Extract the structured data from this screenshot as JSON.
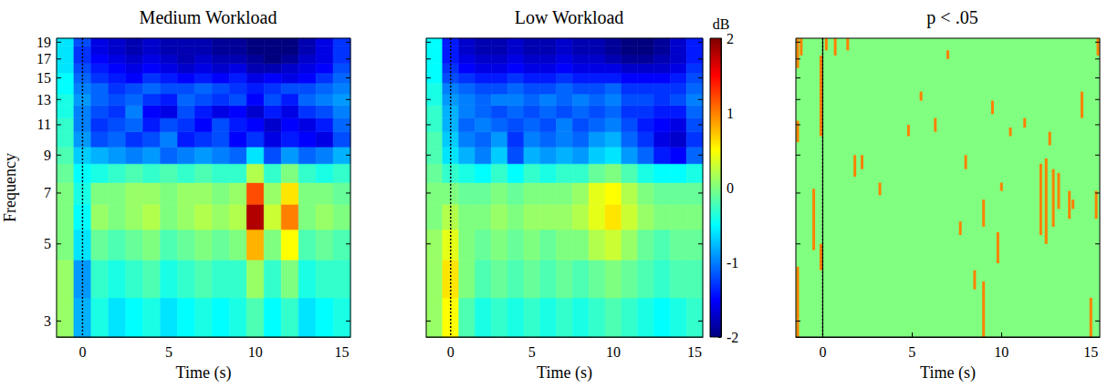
{
  "chart_data": [
    {
      "type": "heatmap",
      "title": "Medium Workload",
      "xlabel": "Time (s)",
      "ylabel": "Frequency",
      "xlim": [
        -1.5,
        15.5
      ],
      "xticks": [
        0,
        5,
        10,
        15
      ],
      "ylim": [
        2.7,
        19.5
      ],
      "yticks": [
        3,
        5,
        7,
        9,
        11,
        13,
        15,
        17,
        19
      ],
      "log": "y",
      "event_line": 0,
      "times": [
        -1,
        0,
        1,
        2,
        3,
        4,
        5,
        6,
        7,
        8,
        9,
        10,
        11,
        12,
        13,
        14,
        15
      ],
      "frequencies": [
        3,
        4,
        5,
        6,
        7,
        8,
        9,
        10,
        11,
        12,
        13,
        14,
        15,
        16,
        17,
        18,
        19
      ],
      "cells": [
        [
          0.1,
          -0.8,
          -0.4,
          -0.6,
          -0.5,
          -0.4,
          -0.6,
          -0.5,
          -0.4,
          -0.5,
          -0.4,
          -0.2,
          -0.5,
          -0.3,
          -0.6,
          -0.5,
          -0.4
        ],
        [
          0.1,
          -0.9,
          -0.3,
          -0.4,
          -0.3,
          -0.2,
          -0.4,
          -0.3,
          -0.2,
          -0.3,
          -0.3,
          0.1,
          -0.3,
          0.0,
          -0.4,
          -0.3,
          -0.3
        ],
        [
          0.0,
          -0.6,
          -0.1,
          -0.2,
          -0.1,
          0.0,
          -0.2,
          -0.1,
          0.0,
          -0.1,
          0.0,
          0.8,
          0.0,
          0.5,
          -0.2,
          -0.1,
          -0.2
        ],
        [
          0.0,
          -0.5,
          0.1,
          0.0,
          0.1,
          0.2,
          0.0,
          0.1,
          0.2,
          0.1,
          0.2,
          1.8,
          0.3,
          1.0,
          0.0,
          0.1,
          0.0
        ],
        [
          0.0,
          -0.4,
          0.0,
          0.0,
          0.1,
          0.1,
          0.0,
          0.1,
          0.1,
          0.0,
          0.1,
          1.2,
          0.1,
          0.6,
          0.0,
          0.0,
          -0.1
        ],
        [
          -0.1,
          -0.5,
          -0.4,
          -0.3,
          -0.2,
          -0.3,
          -0.2,
          -0.3,
          -0.2,
          -0.3,
          -0.3,
          0.2,
          -0.3,
          0.0,
          -0.3,
          -0.4,
          -0.3
        ],
        [
          -0.2,
          -0.7,
          -0.8,
          -0.9,
          -1.0,
          -0.9,
          -1.1,
          -1.0,
          -0.9,
          -1.0,
          -1.1,
          -0.6,
          -1.2,
          -0.9,
          -1.1,
          -1.0,
          -0.8
        ],
        [
          -0.3,
          -0.9,
          -1.2,
          -1.1,
          -1.3,
          -1.2,
          -1.0,
          -1.4,
          -1.3,
          -1.2,
          -1.5,
          -1.3,
          -1.6,
          -1.4,
          -1.5,
          -1.6,
          -1.2
        ],
        [
          -0.3,
          -1.0,
          -1.3,
          -1.2,
          -1.1,
          -1.4,
          -1.2,
          -1.3,
          -1.5,
          -1.2,
          -1.4,
          -1.5,
          -1.7,
          -1.5,
          -1.6,
          -1.4,
          -1.1
        ],
        [
          -0.4,
          -1.0,
          -1.2,
          -1.3,
          -1.0,
          -1.5,
          -1.6,
          -1.2,
          -1.4,
          -1.6,
          -1.5,
          -1.7,
          -1.4,
          -1.6,
          -1.3,
          -1.2,
          -1.0
        ],
        [
          -0.4,
          -0.9,
          -1.1,
          -1.2,
          -1.1,
          -1.3,
          -1.4,
          -1.1,
          -1.2,
          -1.3,
          -1.2,
          -1.5,
          -1.2,
          -1.4,
          -1.1,
          -1.0,
          -0.9
        ],
        [
          -0.5,
          -1.0,
          -1.1,
          -1.3,
          -1.2,
          -1.1,
          -1.2,
          -1.2,
          -1.1,
          -1.2,
          -1.3,
          -1.4,
          -1.3,
          -1.2,
          -1.2,
          -1.1,
          -1.0
        ],
        [
          -0.5,
          -1.1,
          -1.3,
          -1.4,
          -1.5,
          -1.3,
          -1.4,
          -1.5,
          -1.4,
          -1.5,
          -1.4,
          -1.6,
          -1.5,
          -1.6,
          -1.5,
          -1.3,
          -1.1
        ],
        [
          -0.6,
          -1.2,
          -1.4,
          -1.5,
          -1.6,
          -1.5,
          -1.6,
          -1.7,
          -1.6,
          -1.7,
          -1.6,
          -1.8,
          -1.8,
          -1.7,
          -1.6,
          -1.5,
          -1.2
        ],
        [
          -0.6,
          -1.3,
          -1.5,
          -1.6,
          -1.7,
          -1.6,
          -1.7,
          -1.8,
          -1.7,
          -1.8,
          -1.8,
          -1.9,
          -2.0,
          -1.9,
          -1.7,
          -1.6,
          -1.3
        ],
        [
          -0.6,
          -1.3,
          -1.6,
          -1.7,
          -1.8,
          -1.7,
          -1.8,
          -1.8,
          -1.8,
          -1.9,
          -1.9,
          -2.0,
          -2.0,
          -2.0,
          -1.8,
          -1.6,
          -1.3
        ],
        [
          -0.6,
          -1.2,
          -1.6,
          -1.7,
          -1.8,
          -1.7,
          -1.8,
          -1.8,
          -1.8,
          -1.9,
          -1.9,
          -2.0,
          -2.0,
          -2.0,
          -1.8,
          -1.6,
          -1.3
        ]
      ]
    },
    {
      "type": "heatmap",
      "title": "Low Workload",
      "xlabel": "Time (s)",
      "xlim": [
        -1.5,
        15.5
      ],
      "xticks": [
        0,
        5,
        10,
        15
      ],
      "ylim": [
        2.7,
        19.5
      ],
      "yticks": [
        3,
        5,
        7,
        9,
        11,
        13,
        15,
        17,
        19
      ],
      "log": "y",
      "tick_labels": "x",
      "event_line": 0,
      "times": [
        -1,
        0,
        1,
        2,
        3,
        4,
        5,
        6,
        7,
        8,
        9,
        10,
        11,
        12,
        13,
        14,
        15
      ],
      "frequencies": [
        3,
        4,
        5,
        6,
        7,
        8,
        9,
        10,
        11,
        12,
        13,
        14,
        15,
        16,
        17,
        18,
        19
      ],
      "cells": [
        [
          0.1,
          0.5,
          -0.2,
          -0.4,
          -0.3,
          -0.4,
          -0.3,
          -0.4,
          -0.3,
          -0.4,
          -0.3,
          -0.2,
          -0.3,
          -0.4,
          -0.5,
          -0.4,
          -0.3
        ],
        [
          0.1,
          0.6,
          0.0,
          -0.2,
          -0.1,
          -0.2,
          -0.1,
          -0.2,
          -0.1,
          -0.2,
          -0.1,
          0.0,
          -0.1,
          -0.2,
          -0.3,
          -0.2,
          -0.2
        ],
        [
          0.1,
          0.4,
          0.0,
          -0.1,
          0.0,
          -0.1,
          0.0,
          -0.1,
          0.0,
          0.0,
          0.2,
          0.3,
          0.1,
          -0.1,
          -0.2,
          -0.1,
          -0.1
        ],
        [
          0.0,
          0.2,
          0.0,
          0.0,
          0.1,
          0.0,
          0.1,
          0.1,
          0.1,
          0.2,
          0.4,
          0.6,
          0.3,
          0.1,
          0.0,
          0.0,
          0.0
        ],
        [
          0.0,
          0.0,
          -0.1,
          -0.1,
          0.0,
          -0.1,
          0.0,
          0.0,
          0.0,
          0.1,
          0.4,
          0.5,
          0.2,
          0.0,
          -0.1,
          -0.1,
          -0.1
        ],
        [
          -0.1,
          -0.3,
          -0.4,
          -0.5,
          -0.3,
          -0.5,
          -0.3,
          -0.4,
          -0.3,
          -0.3,
          -0.1,
          0.0,
          -0.2,
          -0.4,
          -0.5,
          -0.5,
          -0.4
        ],
        [
          -0.2,
          -0.6,
          -0.8,
          -1.0,
          -0.7,
          -1.2,
          -0.8,
          -0.9,
          -0.8,
          -0.9,
          -0.7,
          -0.6,
          -0.9,
          -1.1,
          -1.4,
          -1.5,
          -1.1
        ],
        [
          -0.2,
          -0.7,
          -1.0,
          -1.1,
          -0.9,
          -1.3,
          -1.0,
          -1.1,
          -1.0,
          -1.1,
          -0.9,
          -0.8,
          -1.1,
          -1.3,
          -1.6,
          -1.7,
          -1.3
        ],
        [
          -0.3,
          -0.8,
          -1.1,
          -1.0,
          -1.1,
          -1.2,
          -1.1,
          -1.2,
          -1.0,
          -1.2,
          -1.1,
          -1.0,
          -1.2,
          -1.4,
          -1.5,
          -1.6,
          -1.2
        ],
        [
          -0.3,
          -0.8,
          -1.0,
          -1.1,
          -1.2,
          -1.1,
          -1.2,
          -1.1,
          -1.2,
          -1.1,
          -1.2,
          -1.1,
          -1.3,
          -1.3,
          -1.4,
          -1.4,
          -1.1
        ],
        [
          -0.4,
          -0.9,
          -1.0,
          -1.1,
          -1.0,
          -1.0,
          -1.1,
          -1.0,
          -1.1,
          -1.0,
          -1.1,
          -1.0,
          -1.2,
          -1.2,
          -1.3,
          -1.2,
          -1.0
        ],
        [
          -0.4,
          -1.0,
          -1.1,
          -1.2,
          -1.2,
          -1.1,
          -1.2,
          -1.2,
          -1.1,
          -1.2,
          -1.2,
          -1.1,
          -1.3,
          -1.3,
          -1.3,
          -1.3,
          -1.1
        ],
        [
          -0.5,
          -1.2,
          -1.3,
          -1.4,
          -1.4,
          -1.3,
          -1.4,
          -1.4,
          -1.3,
          -1.4,
          -1.4,
          -1.4,
          -1.5,
          -1.5,
          -1.5,
          -1.4,
          -1.2
        ],
        [
          -0.5,
          -1.3,
          -1.5,
          -1.6,
          -1.6,
          -1.5,
          -1.6,
          -1.6,
          -1.5,
          -1.6,
          -1.6,
          -1.6,
          -1.7,
          -1.7,
          -1.7,
          -1.6,
          -1.3
        ],
        [
          -0.5,
          -1.4,
          -1.6,
          -1.7,
          -1.7,
          -1.6,
          -1.7,
          -1.7,
          -1.6,
          -1.7,
          -1.7,
          -1.8,
          -1.9,
          -1.9,
          -1.8,
          -1.7,
          -1.4
        ],
        [
          -0.5,
          -1.4,
          -1.7,
          -1.8,
          -1.8,
          -1.7,
          -1.8,
          -1.8,
          -1.7,
          -1.8,
          -1.8,
          -1.9,
          -2.0,
          -2.0,
          -1.9,
          -1.7,
          -1.4
        ],
        [
          -0.5,
          -1.4,
          -1.7,
          -1.8,
          -1.8,
          -1.7,
          -1.8,
          -1.8,
          -1.7,
          -1.8,
          -1.8,
          -1.9,
          -2.0,
          -2.0,
          -1.9,
          -1.7,
          -1.4
        ]
      ],
      "colorbar": {
        "label": "dB",
        "range": [
          -2,
          2
        ],
        "ticks": [
          -2,
          -1,
          0,
          1,
          2
        ]
      }
    },
    {
      "type": "mask",
      "title": "p < .05",
      "xlabel": "Time (s)",
      "xlim": [
        -1.5,
        15.5
      ],
      "xticks": [
        0,
        5,
        10,
        15
      ],
      "ylim": [
        2.7,
        19.5
      ],
      "yticks": [
        3,
        5,
        7,
        9,
        11,
        13,
        15,
        17,
        19
      ],
      "log": "y",
      "tick_labels": "x",
      "event_line": 0,
      "color": "#ff8000",
      "significant": [
        [
          -1.4,
          16,
          19.5
        ],
        [
          -1.4,
          9.8,
          11.3
        ],
        [
          -1.4,
          2.7,
          4.3
        ],
        [
          -1.2,
          17.4,
          19.5
        ],
        [
          -0.5,
          4.8,
          7.2
        ],
        [
          -0.1,
          10.2,
          17.4
        ],
        [
          -0.1,
          4.2,
          5.0
        ],
        [
          0.2,
          18,
          19.5
        ],
        [
          0.7,
          17.4,
          19.5
        ],
        [
          1.4,
          18,
          19.5
        ],
        [
          1.8,
          7.8,
          9.0
        ],
        [
          2.2,
          8.2,
          9.0
        ],
        [
          3.2,
          6.9,
          7.5
        ],
        [
          4.8,
          10.2,
          11
        ],
        [
          5.5,
          12.9,
          13.7
        ],
        [
          6.3,
          10.5,
          11.5
        ],
        [
          7.0,
          17,
          18
        ],
        [
          7.7,
          5.3,
          5.8
        ],
        [
          8.0,
          8.2,
          9
        ],
        [
          8.5,
          3.7,
          4.2
        ],
        [
          9.0,
          5.6,
          6.7
        ],
        [
          9.0,
          2.7,
          3.9
        ],
        [
          9.5,
          11.8,
          12.9
        ],
        [
          9.8,
          4.4,
          5.4
        ],
        [
          10.0,
          7.1,
          7.5
        ],
        [
          10.5,
          10.2,
          10.8
        ],
        [
          11.3,
          10.8,
          11.5
        ],
        [
          12.2,
          5.3,
          8.5
        ],
        [
          12.5,
          5.0,
          8.8
        ],
        [
          12.7,
          9.6,
          10.5
        ],
        [
          12.9,
          5.6,
          8.2
        ],
        [
          13.2,
          6.3,
          8.0
        ],
        [
          13.8,
          5.9,
          7.1
        ],
        [
          14.0,
          6.3,
          6.7
        ],
        [
          14.5,
          11.5,
          13.7
        ],
        [
          15.0,
          2.7,
          3.5
        ],
        [
          15.3,
          5.9,
          7.1
        ],
        [
          15.4,
          17.4,
          19.5
        ]
      ]
    }
  ]
}
